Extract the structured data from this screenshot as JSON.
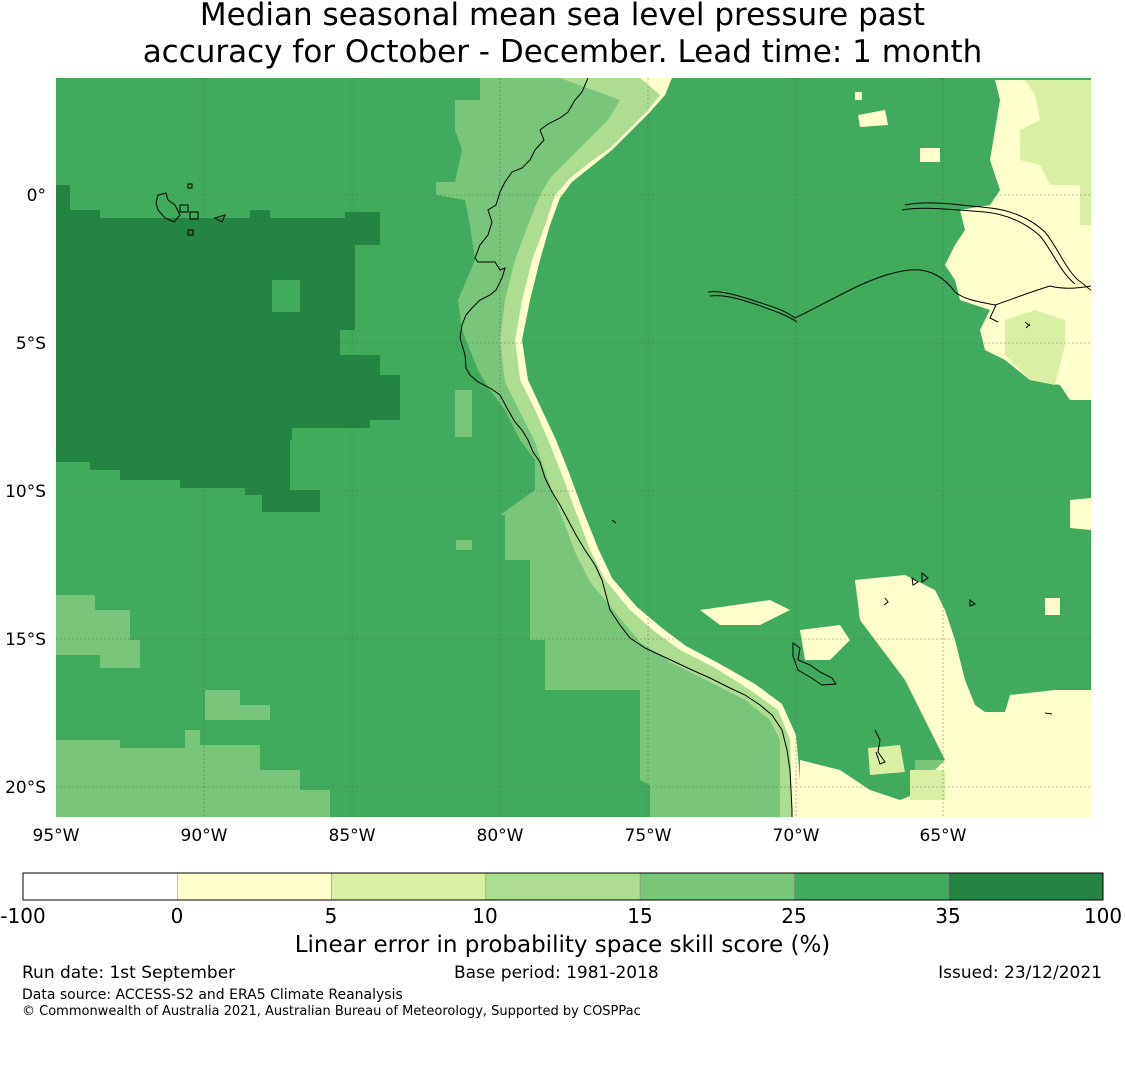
{
  "title": {
    "line1": "Median seasonal mean sea level pressure past",
    "line2": "accuracy for October - December. Lead time: 1 month"
  },
  "map": {
    "lon_range": [
      -95,
      -60
    ],
    "lat_range": [
      -21,
      4
    ],
    "grid_lons": [
      -95,
      -90,
      -85,
      -80,
      -75,
      -70,
      -65
    ],
    "grid_lats": [
      0,
      -5,
      -10,
      -15,
      -20
    ],
    "lon_labels": [
      "95°W",
      "90°W",
      "85°W",
      "80°W",
      "75°W",
      "70°W",
      "65°W"
    ],
    "lat_labels": [
      "0°",
      "5°S",
      "10°S",
      "15°S",
      "20°S"
    ]
  },
  "colorbar": {
    "tick_labels": [
      "-100",
      "0",
      "5",
      "10",
      "15",
      "25",
      "35",
      "100"
    ],
    "colors": [
      "#ffffff",
      "#ffffcc",
      "#d9f0a3",
      "#addd8e",
      "#78c679",
      "#41ab5d",
      "#238443"
    ],
    "label": "Linear error in probability space skill score (%)"
  },
  "footer": {
    "run_date": "Run date: 1st September",
    "base_period": "Base period: 1981-2018",
    "issued": "Issued: 23/12/2021",
    "data_source": "Data source: ACCESS-S2 and ERA5 Climate Reanalysis",
    "copyright": "© Commonwealth of Australia 2021, Australian Bureau of Meteorology, Supported by COSPPac"
  }
}
